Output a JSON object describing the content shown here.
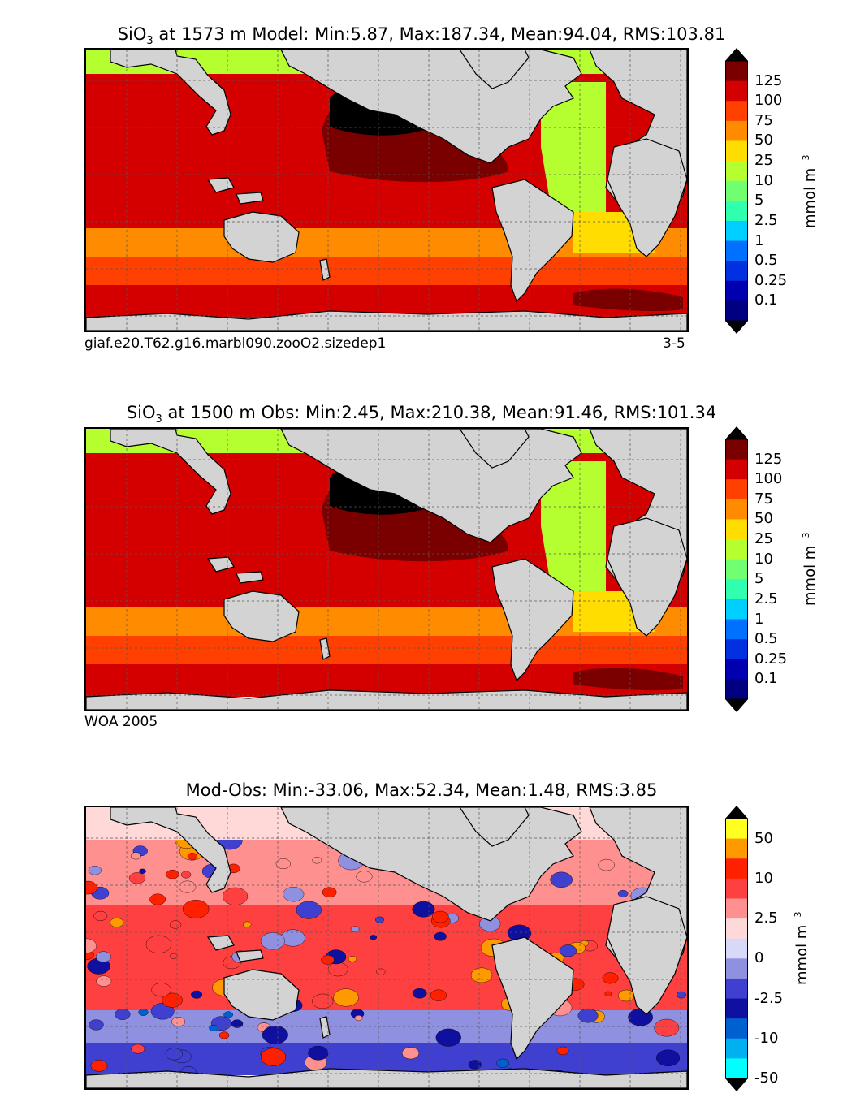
{
  "panels": [
    {
      "title_prefix": "SiO",
      "title_sub": "3",
      "title_rest": " at 1573 m Model: Min:5.87, Max:187.34, Mean:94.04, RMS:103.81",
      "caption_left": "giaf.e20.T62.g16.marbl090.zooO2.sizedep1",
      "caption_right": "3-5",
      "scheme": "model"
    },
    {
      "title_prefix": "SiO",
      "title_sub": "3",
      "title_rest": " at 1500 m Obs: Min:2.45, Max:210.38, Mean:91.46, RMS:101.34",
      "caption_left": "WOA 2005",
      "caption_right": "",
      "scheme": "obs"
    },
    {
      "title_prefix": "",
      "title_sub": "",
      "title_rest": "Mod-Obs: Min:-33.06, Max:52.34, Mean:1.48, RMS:3.85",
      "caption_left": "",
      "caption_right": "",
      "scheme": "diff"
    }
  ],
  "colorbars": [
    {
      "unit_main": "mmol m",
      "unit_sup": "−3",
      "labels": [
        "125",
        "100",
        "75",
        "50",
        "25",
        "10",
        "5",
        "2.5",
        "1",
        "0.5",
        "0.25",
        "0.1"
      ],
      "colors": [
        "#7a0000",
        "#d40000",
        "#ff4000",
        "#ff8c00",
        "#ffdd00",
        "#b5ff30",
        "#70ff70",
        "#30ffb0",
        "#00d0ff",
        "#0070ff",
        "#0030e0",
        "#0000b0",
        "#000080"
      ],
      "extend_top_color": "#000000",
      "extend_bottom_color": "#000000"
    },
    {
      "unit_main": "mmol m",
      "unit_sup": "−3",
      "labels": [
        "125",
        "100",
        "75",
        "50",
        "25",
        "10",
        "5",
        "2.5",
        "1",
        "0.5",
        "0.25",
        "0.1"
      ],
      "colors": [
        "#7a0000",
        "#d40000",
        "#ff4000",
        "#ff8c00",
        "#ffdd00",
        "#b5ff30",
        "#70ff70",
        "#30ffb0",
        "#00d0ff",
        "#0070ff",
        "#0030e0",
        "#0000b0",
        "#000080"
      ],
      "extend_top_color": "#000000",
      "extend_bottom_color": "#000000"
    },
    {
      "unit_main": "mmol m",
      "unit_sup": "−3",
      "labels": [
        "50",
        "10",
        "2.5",
        "0",
        "-2.5",
        "-10",
        "-50"
      ],
      "colors": [
        "#ffff20",
        "#ff9900",
        "#ff2000",
        "#ff4040",
        "#ff9090",
        "#ffd8d8",
        "#d8d8f8",
        "#9090e0",
        "#4040d0",
        "#1010a0",
        "#0060d0",
        "#00b0f0",
        "#00ffff"
      ],
      "extend_top_color": "#000000",
      "extend_bottom_color": "#000000"
    }
  ],
  "map_colors": {
    "land": "#d3d3d3",
    "missing": "#ffffff",
    "coast": "#000000",
    "grid": "#555555"
  }
}
